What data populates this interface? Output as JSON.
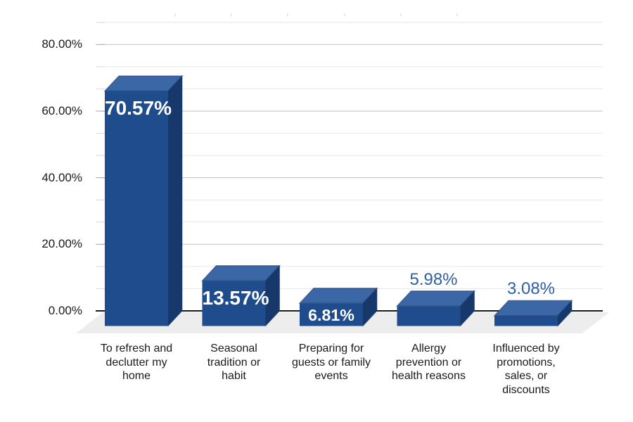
{
  "chart_data": {
    "type": "bar",
    "style": "3d-column",
    "title": "",
    "categories": [
      "To refresh and declutter my home",
      "Seasonal tradition or habit",
      "Preparing for guests or family events",
      "Allergy prevention or health reasons",
      "Influenced by promotions, sales, or discounts"
    ],
    "category_lines": [
      [
        "To refresh and",
        "declutter my",
        "home"
      ],
      [
        "Seasonal",
        "tradition or",
        "habit"
      ],
      [
        "Preparing for",
        "guests or family",
        "events"
      ],
      [
        "Allergy",
        "prevention or",
        "health reasons"
      ],
      [
        "Influenced by",
        "promotions,",
        "sales, or",
        "discounts"
      ]
    ],
    "values": [
      70.57,
      13.57,
      6.81,
      5.98,
      3.08
    ],
    "value_labels": [
      "70.57%",
      "13.57%",
      "6.81%",
      "5.98%",
      "3.08%"
    ],
    "value_label_placement": [
      "inside",
      "inside",
      "inside",
      "above",
      "above"
    ],
    "y_axis": {
      "tick_labels": [
        "0.00%",
        "20.00%",
        "40.00%",
        "60.00%",
        "80.00%"
      ],
      "min": 0,
      "max": 80,
      "major_step": 20,
      "minor_divisions_per_major": 3
    },
    "xlabel": "",
    "ylabel": "",
    "legend": false,
    "grid": true,
    "colors": {
      "bar_front": "#1f4c8d",
      "bar_top": "#3c67a6",
      "bar_side": "#16386b",
      "bar_edge_dark": "#15346382",
      "value_label_inside": "#ffffff",
      "value_label_above": "#2e5fa3",
      "axis_text": "#1a1a1a",
      "grid_major": "#c9c9c9",
      "grid_minor": "#e7e7e7",
      "axis_line": "#1a1a1a",
      "floor": "#ededed"
    }
  }
}
